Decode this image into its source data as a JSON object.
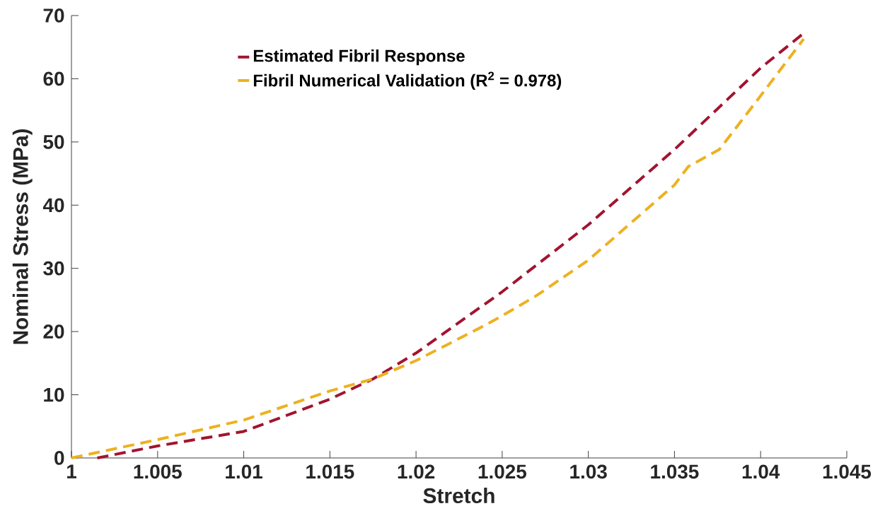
{
  "chart_data": {
    "type": "line",
    "xlabel": "Stretch",
    "ylabel": "Nominal Stress (MPa)",
    "xlim": [
      1,
      1.045
    ],
    "xticks": [
      1,
      1.005,
      1.01,
      1.015,
      1.02,
      1.025,
      1.03,
      1.035,
      1.04,
      1.045
    ],
    "ylim": [
      0,
      70
    ],
    "yticks": [
      0,
      10,
      20,
      30,
      40,
      50,
      60,
      70
    ],
    "grid": false,
    "legend": "top",
    "line_style": "dashed",
    "series": [
      {
        "name": "Estimated Fibril Response",
        "color": "#a2142f",
        "x": [
          1.0015,
          1.005,
          1.01,
          1.015,
          1.0175,
          1.02,
          1.025,
          1.03,
          1.035,
          1.04,
          1.0425
        ],
        "values": [
          0,
          1.9,
          4.2,
          9.3,
          12.5,
          16.6,
          26.3,
          36.9,
          48.8,
          61.7,
          67.2
        ]
      },
      {
        "name": "Fibril Numerical Validation (R$^{2}$ = 0.978)",
        "color": "#edb120",
        "x": [
          1,
          1.005,
          1.01,
          1.015,
          1.0175,
          1.02,
          1.024,
          1.025,
          1.027,
          1.03,
          1.035,
          1.0358,
          1.0376,
          1.04,
          1.0425
        ],
        "values": [
          0,
          2.9,
          6.0,
          10.6,
          12.5,
          15.4,
          21,
          22.5,
          25.7,
          31.3,
          43.2,
          46.1,
          48.8,
          57.3,
          66.3
        ]
      }
    ]
  }
}
